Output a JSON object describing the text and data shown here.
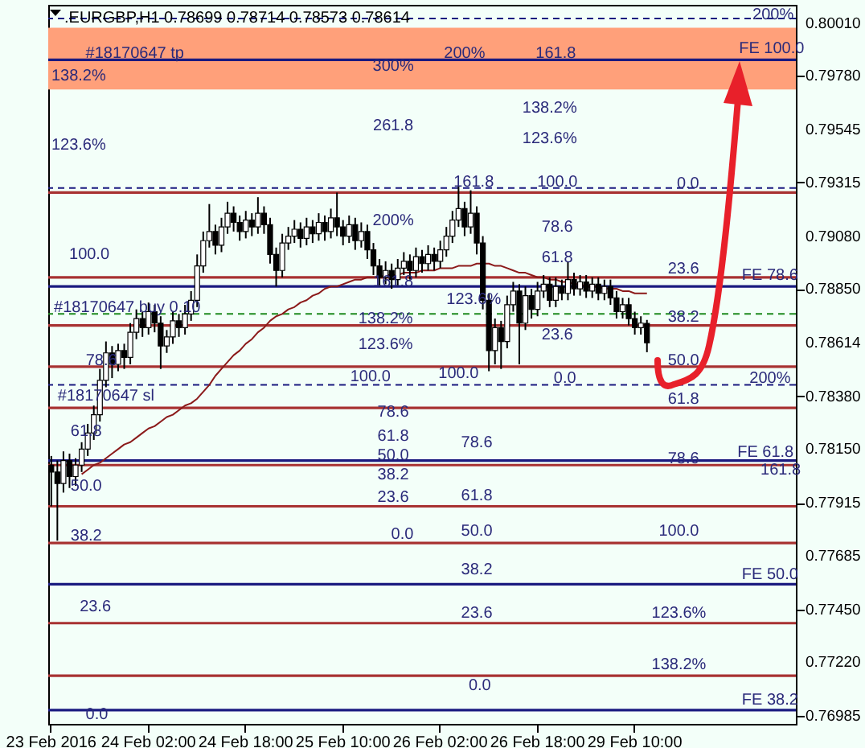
{
  "chart_data": {
    "type": "candlestick",
    "title": ".EURGBP,H1  0.78699 0.78714 0.78573 0.78614",
    "categories": [
      "23 Feb 2016",
      null,
      null,
      null,
      null,
      null,
      null,
      null,
      null,
      null,
      null,
      null,
      null,
      null,
      null,
      null,
      "24 Feb 02:00",
      null,
      null,
      null,
      null,
      null,
      null,
      null,
      null,
      null,
      null,
      null,
      null,
      null,
      null,
      null,
      "24 Feb 18:00",
      null,
      null,
      null,
      null,
      null,
      null,
      null,
      null,
      null,
      null,
      null,
      null,
      null,
      null,
      null,
      "25 Feb 10:00",
      null,
      null,
      null,
      null,
      null,
      null,
      null,
      null,
      null,
      null,
      null,
      null,
      null,
      null,
      null,
      "26 Feb 02:00",
      null,
      null,
      null,
      null,
      null,
      null,
      null,
      null,
      null,
      null,
      null,
      null,
      null,
      null,
      null,
      "26 Feb 18:00",
      null,
      null,
      null,
      null,
      null,
      null,
      null,
      null,
      null,
      null,
      null,
      null,
      null,
      null,
      null,
      "29 Feb 10:00",
      null,
      null,
      null,
      null,
      null,
      null,
      null,
      null,
      null,
      null,
      null,
      null,
      null,
      null,
      null,
      null,
      null,
      null,
      null,
      null,
      null,
      null,
      null,
      null,
      null,
      null
    ],
    "ohlc": [
      [
        0.7808,
        0.7812,
        0.779,
        0.7805
      ],
      [
        0.7805,
        0.781,
        0.7775,
        0.78
      ],
      [
        0.78,
        0.7814,
        0.7796,
        0.781
      ],
      [
        0.781,
        0.7813,
        0.7798,
        0.7803
      ],
      [
        0.7803,
        0.7811,
        0.7799,
        0.7808
      ],
      [
        0.7808,
        0.7818,
        0.7805,
        0.7815
      ],
      [
        0.7815,
        0.7826,
        0.7812,
        0.7822
      ],
      [
        0.7822,
        0.7834,
        0.7819,
        0.783
      ],
      [
        0.783,
        0.785,
        0.7827,
        0.7845
      ],
      [
        0.7845,
        0.7862,
        0.7842,
        0.7857
      ],
      [
        0.7857,
        0.786,
        0.7846,
        0.7852
      ],
      [
        0.7852,
        0.7861,
        0.7849,
        0.7858
      ],
      [
        0.7858,
        0.7861,
        0.785,
        0.7855
      ],
      [
        0.7855,
        0.787,
        0.7852,
        0.7866
      ],
      [
        0.7866,
        0.7876,
        0.7863,
        0.7872
      ],
      [
        0.7872,
        0.7875,
        0.7864,
        0.7868
      ],
      [
        0.7868,
        0.7879,
        0.7865,
        0.7875
      ],
      [
        0.7875,
        0.7878,
        0.7866,
        0.787
      ],
      [
        0.787,
        0.7873,
        0.785,
        0.786
      ],
      [
        0.786,
        0.7867,
        0.7857,
        0.7864
      ],
      [
        0.7864,
        0.7875,
        0.7861,
        0.7871
      ],
      [
        0.7871,
        0.7874,
        0.7864,
        0.7868
      ],
      [
        0.7868,
        0.7878,
        0.7865,
        0.7874
      ],
      [
        0.7874,
        0.7884,
        0.7871,
        0.788
      ],
      [
        0.788,
        0.79,
        0.7877,
        0.7895
      ],
      [
        0.7895,
        0.791,
        0.7892,
        0.7906
      ],
      [
        0.7906,
        0.7922,
        0.7903,
        0.791
      ],
      [
        0.791,
        0.7913,
        0.79,
        0.7904
      ],
      [
        0.7904,
        0.7916,
        0.7901,
        0.7912
      ],
      [
        0.7912,
        0.7923,
        0.7909,
        0.7918
      ],
      [
        0.7918,
        0.7921,
        0.791,
        0.7914
      ],
      [
        0.7914,
        0.7917,
        0.7906,
        0.791
      ],
      [
        0.791,
        0.7919,
        0.7907,
        0.7915
      ],
      [
        0.7915,
        0.7918,
        0.7908,
        0.7912
      ],
      [
        0.7912,
        0.7925,
        0.7909,
        0.7918
      ],
      [
        0.7918,
        0.7921,
        0.7909,
        0.7913
      ],
      [
        0.7913,
        0.7916,
        0.7896,
        0.79
      ],
      [
        0.79,
        0.7903,
        0.7886,
        0.7893
      ],
      [
        0.7893,
        0.7909,
        0.789,
        0.7905
      ],
      [
        0.7905,
        0.7912,
        0.7902,
        0.7908
      ],
      [
        0.7908,
        0.7915,
        0.7905,
        0.7911
      ],
      [
        0.7911,
        0.7914,
        0.7903,
        0.7907
      ],
      [
        0.7907,
        0.7916,
        0.7904,
        0.7912
      ],
      [
        0.7912,
        0.7915,
        0.7905,
        0.7909
      ],
      [
        0.7909,
        0.7918,
        0.7906,
        0.7914
      ],
      [
        0.7914,
        0.7917,
        0.7906,
        0.791
      ],
      [
        0.791,
        0.792,
        0.7907,
        0.7916
      ],
      [
        0.7916,
        0.7927,
        0.7908,
        0.7912
      ],
      [
        0.7912,
        0.7915,
        0.7904,
        0.7908
      ],
      [
        0.7908,
        0.7917,
        0.7905,
        0.7913
      ],
      [
        0.7913,
        0.7916,
        0.7902,
        0.7906
      ],
      [
        0.7906,
        0.7914,
        0.7903,
        0.791
      ],
      [
        0.791,
        0.7913,
        0.7898,
        0.7902
      ],
      [
        0.7902,
        0.7905,
        0.7891,
        0.7895
      ],
      [
        0.7895,
        0.7898,
        0.7886,
        0.789
      ],
      [
        0.789,
        0.7897,
        0.7887,
        0.7893
      ],
      [
        0.7893,
        0.7896,
        0.7885,
        0.7889
      ],
      [
        0.7889,
        0.7898,
        0.7886,
        0.7894
      ],
      [
        0.7894,
        0.7901,
        0.7891,
        0.7897
      ],
      [
        0.7897,
        0.79,
        0.7889,
        0.7893
      ],
      [
        0.7893,
        0.7903,
        0.789,
        0.7899
      ],
      [
        0.7899,
        0.7902,
        0.7892,
        0.7896
      ],
      [
        0.7896,
        0.7904,
        0.7893,
        0.79
      ],
      [
        0.79,
        0.7903,
        0.7893,
        0.7897
      ],
      [
        0.7897,
        0.7906,
        0.7894,
        0.7902
      ],
      [
        0.7902,
        0.7912,
        0.7899,
        0.7908
      ],
      [
        0.7908,
        0.7919,
        0.7905,
        0.7915
      ],
      [
        0.7915,
        0.793,
        0.7912,
        0.792
      ],
      [
        0.792,
        0.7923,
        0.7908,
        0.7912
      ],
      [
        0.7912,
        0.7928,
        0.7909,
        0.7918
      ],
      [
        0.7918,
        0.7921,
        0.79,
        0.7905
      ],
      [
        0.7905,
        0.7908,
        0.7876,
        0.788
      ],
      [
        0.788,
        0.7883,
        0.7849,
        0.7858
      ],
      [
        0.7858,
        0.7872,
        0.7852,
        0.7868
      ],
      [
        0.7868,
        0.7871,
        0.785,
        0.7862
      ],
      [
        0.7862,
        0.7882,
        0.7859,
        0.7878
      ],
      [
        0.7878,
        0.7888,
        0.7875,
        0.7884
      ],
      [
        0.7884,
        0.7887,
        0.7852,
        0.787
      ],
      [
        0.787,
        0.7886,
        0.7867,
        0.7882
      ],
      [
        0.7882,
        0.7885,
        0.7872,
        0.7876
      ],
      [
        0.7876,
        0.7888,
        0.7873,
        0.7884
      ],
      [
        0.7884,
        0.7891,
        0.7881,
        0.7887
      ],
      [
        0.7887,
        0.789,
        0.7877,
        0.788
      ],
      [
        0.788,
        0.789,
        0.7877,
        0.7886
      ],
      [
        0.7886,
        0.7889,
        0.788,
        0.7883
      ],
      [
        0.7883,
        0.7897,
        0.788,
        0.7889
      ],
      [
        0.7889,
        0.7892,
        0.7882,
        0.7885
      ],
      [
        0.7885,
        0.7891,
        0.7882,
        0.7888
      ],
      [
        0.7888,
        0.7891,
        0.7881,
        0.7884
      ],
      [
        0.7884,
        0.789,
        0.7881,
        0.7887
      ],
      [
        0.7887,
        0.789,
        0.788,
        0.7883
      ],
      [
        0.7883,
        0.7889,
        0.788,
        0.7886
      ],
      [
        0.7886,
        0.7889,
        0.7878,
        0.7881
      ],
      [
        0.7881,
        0.7884,
        0.7872,
        0.7875
      ],
      [
        0.7875,
        0.7881,
        0.7872,
        0.7878
      ],
      [
        0.7878,
        0.7881,
        0.7869,
        0.7872
      ],
      [
        0.7872,
        0.7875,
        0.7865,
        0.7868
      ],
      [
        0.7868,
        0.7873,
        0.7865,
        0.787
      ],
      [
        0.78699,
        0.78714,
        0.78573,
        0.78614
      ],
      null,
      null,
      null,
      null,
      null,
      null,
      null,
      null,
      null,
      null,
      null,
      null,
      null,
      null,
      null,
      null,
      null,
      null,
      null,
      null,
      null,
      null,
      null,
      null
    ],
    "series": [
      {
        "type": "line",
        "color": "#8b1a1a",
        "values": [
          null,
          null,
          null,
          null,
          null,
          0.7804,
          0.7806,
          0.7808,
          0.7809,
          0.7811,
          0.7813,
          0.7815,
          0.7817,
          0.7818,
          0.782,
          0.7822,
          0.7824,
          0.7825,
          0.7827,
          0.7829,
          0.783,
          0.7832,
          0.7834,
          0.7835,
          0.7837,
          0.784,
          0.7843,
          0.7847,
          0.785,
          0.7853,
          0.7856,
          0.7858,
          0.7861,
          0.7863,
          0.7866,
          0.7868,
          0.7871,
          0.7873,
          0.7874,
          0.7876,
          0.7877,
          0.7879,
          0.788,
          0.7882,
          0.7883,
          0.7885,
          0.7886,
          0.7886,
          0.7887,
          0.7888,
          0.7889,
          0.7889,
          0.789,
          0.789,
          0.789,
          0.7891,
          0.7891,
          0.7891,
          0.7892,
          0.7892,
          0.7892,
          0.7893,
          0.7893,
          0.7893,
          0.7894,
          0.7894,
          0.7894,
          0.7895,
          0.7895,
          0.7895,
          0.7896,
          0.7896,
          0.7896,
          0.7895,
          0.7895,
          0.7894,
          0.7893,
          0.7892,
          0.7892,
          0.7891,
          0.789,
          0.789,
          0.7889,
          0.7889,
          0.7888,
          0.7888,
          0.7887,
          0.7887,
          0.7886,
          0.7886,
          0.7886,
          0.7885,
          0.7885,
          0.7885,
          0.7884,
          0.7884,
          0.7883,
          0.7883,
          0.7883,
          null,
          null,
          null,
          null,
          null,
          null,
          null,
          null,
          null,
          null,
          null,
          null,
          null,
          null,
          null,
          null,
          null,
          null,
          null,
          null,
          null,
          null,
          null,
          null
        ]
      }
    ],
    "ylim": [
      0.7695,
      0.8009
    ],
    "yticks": [
      {
        "value": 0.8001,
        "label": "0.80010"
      },
      {
        "value": 0.7978,
        "label": "0.79780"
      },
      0.79545,
      0.79315,
      {
        "value": 0.7908,
        "label": "0.79080"
      },
      {
        "value": 0.7885,
        "label": "0.78850"
      },
      0.78614,
      {
        "value": 0.7838,
        "label": "0.78380"
      },
      {
        "value": 0.7815,
        "label": "0.78150"
      },
      0.77915,
      0.77685,
      {
        "value": 0.7745,
        "label": "0.77450"
      },
      {
        "value": 0.7722,
        "label": "0.77220"
      },
      0.76985
    ],
    "bands": [
      {
        "axis": "y",
        "from": 0.7972,
        "to": 0.7999,
        "color": "#ffa07a"
      }
    ],
    "ref_lines": [
      {
        "axis": "y",
        "value": 0.8003,
        "color": "#1a1a80",
        "line_style": "dashed"
      },
      {
        "axis": "y",
        "value": 0.7985,
        "color": "#1a1a80",
        "line_style": "solid"
      },
      {
        "axis": "y",
        "value": 0.7929,
        "color": "#1a1a80",
        "line_style": "dashed"
      },
      {
        "axis": "y",
        "value": 0.7927,
        "color": "#a83232",
        "line_style": "solid"
      },
      {
        "axis": "y",
        "value": 0.789,
        "color": "#a83232",
        "line_style": "solid"
      },
      {
        "axis": "y",
        "value": 0.7886,
        "color": "#1a1a80",
        "line_style": "solid"
      },
      {
        "axis": "y",
        "value": 0.7874,
        "color": "#1e8a1e",
        "line_style": "dashed"
      },
      {
        "axis": "y",
        "value": 0.7869,
        "color": "#a83232",
        "line_style": "solid"
      },
      {
        "axis": "y",
        "value": 0.7851,
        "color": "#a83232",
        "line_style": "solid"
      },
      {
        "axis": "y",
        "value": 0.7843,
        "color": "#1a1a80",
        "line_style": "dashed"
      },
      {
        "axis": "y",
        "value": 0.7833,
        "color": "#a83232",
        "line_style": "solid"
      },
      {
        "axis": "y",
        "value": 0.781,
        "color": "#1a1a80",
        "line_style": "solid"
      },
      {
        "axis": "y",
        "value": 0.7808,
        "color": "#a83232",
        "line_style": "solid"
      },
      {
        "axis": "y",
        "value": 0.779,
        "color": "#a83232",
        "line_style": "solid"
      },
      {
        "axis": "y",
        "value": 0.7774,
        "color": "#a83232",
        "line_style": "solid"
      },
      {
        "axis": "y",
        "value": 0.7756,
        "color": "#1a1a80",
        "line_style": "solid"
      },
      {
        "axis": "y",
        "value": 0.7739,
        "color": "#a83232",
        "line_style": "solid"
      },
      {
        "axis": "y",
        "value": 0.7716,
        "color": "#a83232",
        "line_style": "solid"
      },
      {
        "axis": "y",
        "value": 0.7701,
        "color": "#1a1a80",
        "line_style": "solid"
      }
    ],
    "annotations": [
      "#18170647 tp",
      "300%",
      "200%",
      "161.8",
      "138.2%",
      "200%",
      "FE 100.0",
      "261.8",
      "138.2%",
      "123.6%",
      "123.6%",
      "161.8",
      "100.0",
      "0.0",
      "200%",
      "78.6",
      "100.0",
      "61.8",
      "23.6",
      "FE 78.6",
      "161.8",
      "123.6%",
      "#18170647 buy 0.10",
      "138.2%",
      "38.2",
      "23.6",
      "123.6%",
      "78.6",
      "50.0",
      "100.0",
      "100.0",
      "0.0",
      "200%",
      "#18170647 sl",
      "61.8",
      "78.6",
      "61.8",
      "61.8",
      "78.6",
      "FE 61.8",
      "50.0",
      "161.8",
      "78.6",
      "38.2",
      "50.0",
      "23.6",
      "61.8",
      "0.0",
      "50.0",
      "100.0",
      "38.2",
      "38.2",
      "FE 50.0",
      "23.6",
      "23.6",
      "123.6%",
      "138.2%",
      "0.0",
      "FE 38.2",
      "0.0"
    ],
    "grid": false
  }
}
